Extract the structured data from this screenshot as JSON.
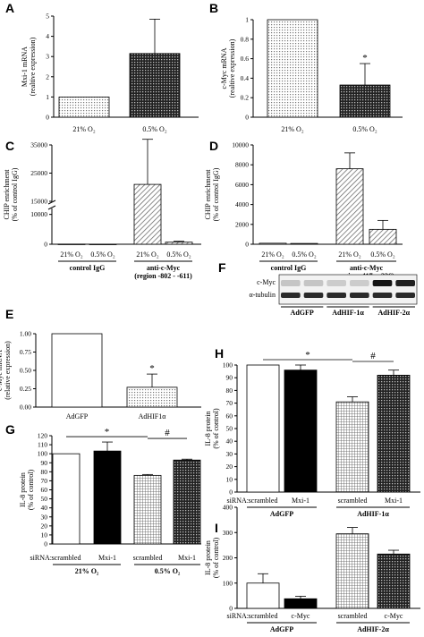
{
  "chart_data": [
    {
      "panel": "A",
      "type": "bar",
      "categories": [
        "21% O₂",
        "0.5% O₂"
      ],
      "values": [
        1.0,
        3.15
      ],
      "errors": [
        0,
        1.7
      ],
      "ylabel": [
        "Mxi-1 mRNA",
        "(realtive expression)"
      ],
      "ylim": [
        0,
        5
      ],
      "yticks": [
        0,
        1,
        2,
        3,
        4,
        5
      ],
      "fills": [
        "dots",
        "darkgrid"
      ]
    },
    {
      "panel": "B",
      "type": "bar",
      "categories": [
        "21% O₂",
        "0.5% O₂"
      ],
      "values": [
        1.0,
        0.33
      ],
      "errors": [
        0,
        0.22
      ],
      "ylabel": [
        "c-Myc mRNA",
        "(realtive expression)"
      ],
      "ylim": [
        0,
        1.0
      ],
      "yticks": [
        0,
        0.2,
        0.4,
        0.6,
        0.8,
        1.0
      ],
      "annotations": [
        "*"
      ],
      "fills": [
        "dots",
        "darkgrid"
      ]
    },
    {
      "panel": "C",
      "type": "bar",
      "categories": [
        "21% O₂",
        "0.5% O₂",
        "21% O₂",
        "0.5% O₂"
      ],
      "groups": [
        "control IgG",
        "anti-c-Myc",
        "(region -802 - -611)"
      ],
      "values": [
        50,
        30,
        21000,
        700
      ],
      "errors": [
        0,
        0,
        16000,
        300
      ],
      "ylabel": [
        "CHIP enrichment",
        "(% of control IgG)"
      ],
      "yticks": [
        0,
        10000,
        15000,
        25000,
        35000
      ],
      "axis_break": [
        12000,
        15000
      ],
      "fills": [
        "white",
        "white",
        "diag",
        "diag"
      ]
    },
    {
      "panel": "D",
      "type": "bar",
      "categories": [
        "21% O₂",
        "0.5% O₂",
        "21% O₂",
        "0.5% O₂"
      ],
      "groups": [
        "control IgG",
        "anti-c-Myc",
        "region -417 - -226)"
      ],
      "values": [
        100,
        80,
        7600,
        1500
      ],
      "errors": [
        0,
        0,
        1600,
        900
      ],
      "ylabel": [
        "CHIP enrichment",
        "(% of control IgG)"
      ],
      "ylim": [
        0,
        10000
      ],
      "yticks": [
        0,
        2000,
        4000,
        6000,
        8000,
        10000
      ],
      "fills": [
        "white",
        "white",
        "diag",
        "diag"
      ]
    },
    {
      "panel": "E",
      "type": "bar",
      "categories": [
        "AdGFP",
        "AdHIF1α"
      ],
      "values": [
        1.0,
        0.27
      ],
      "errors": [
        0,
        0.18
      ],
      "ylabel": [
        "c-Myc mRNA",
        "(relative expression)"
      ],
      "ylim": [
        0,
        1.0
      ],
      "yticks": [
        0,
        0.25,
        0.5,
        0.75,
        1.0
      ],
      "ytick_labels": [
        "0.00",
        "0.25",
        "0.50",
        "0.75",
        "1.00"
      ],
      "annotations": [
        "*"
      ],
      "fills": [
        "white",
        "dots"
      ]
    },
    {
      "panel": "H",
      "type": "bar",
      "prefix": "siRNA:",
      "categories": [
        "scrambled",
        "Mxi-1",
        "scrambled",
        "Mxi-1"
      ],
      "groups": [
        "AdGFP",
        "AdHIF-1α"
      ],
      "values": [
        100,
        96,
        71,
        92
      ],
      "errors": [
        0,
        4,
        4,
        4
      ],
      "ylabel": [
        "IL-8 protein",
        "(% of control)"
      ],
      "ylim": [
        0,
        100
      ],
      "yticks": [
        0,
        10,
        20,
        30,
        40,
        50,
        60,
        70,
        80,
        90,
        100
      ],
      "annotations": [
        "*",
        "#"
      ],
      "fills": [
        "white",
        "black",
        "grid",
        "darkgrid"
      ]
    },
    {
      "panel": "G",
      "type": "bar",
      "prefix": "siRNA:",
      "categories": [
        "scrambled",
        "Mxi-1",
        "scrambled",
        "Mxi-1"
      ],
      "groups": [
        "21% O₂",
        "0.5% O₂"
      ],
      "values": [
        100,
        103,
        76,
        93
      ],
      "errors": [
        0,
        10,
        1,
        1
      ],
      "ylabel": [
        "IL-8 protein",
        "(% of control)"
      ],
      "ylim": [
        0,
        120
      ],
      "yticks": [
        0,
        10,
        20,
        30,
        40,
        50,
        60,
        70,
        80,
        90,
        100,
        110,
        120
      ],
      "annotations": [
        "*",
        "#"
      ],
      "fills": [
        "white",
        "black",
        "grid",
        "darkgrid"
      ]
    },
    {
      "panel": "I",
      "type": "bar",
      "prefix": "siRNA:",
      "categories": [
        "scrambled",
        "c-Myc",
        "scrambled",
        "c-Myc"
      ],
      "groups": [
        "AdGFP",
        "AdHIF-2α"
      ],
      "values": [
        100,
        38,
        295,
        215
      ],
      "errors": [
        37,
        10,
        25,
        15
      ],
      "ylabel": [
        "IL-8 protein",
        "(% of control)"
      ],
      "ylim": [
        0,
        400
      ],
      "yticks": [
        0,
        100,
        200,
        300,
        400
      ],
      "fills": [
        "white",
        "black",
        "grid",
        "darkgrid"
      ]
    }
  ],
  "blot": {
    "panel": "F",
    "rows": [
      "c-Myc",
      "α-tubulin"
    ],
    "lanes": [
      "AdGFP",
      "AdHIF-1α",
      "AdHIF-2α"
    ]
  },
  "colors": {
    "black": "#000000",
    "white": "#ffffff",
    "dark": "#333333"
  }
}
